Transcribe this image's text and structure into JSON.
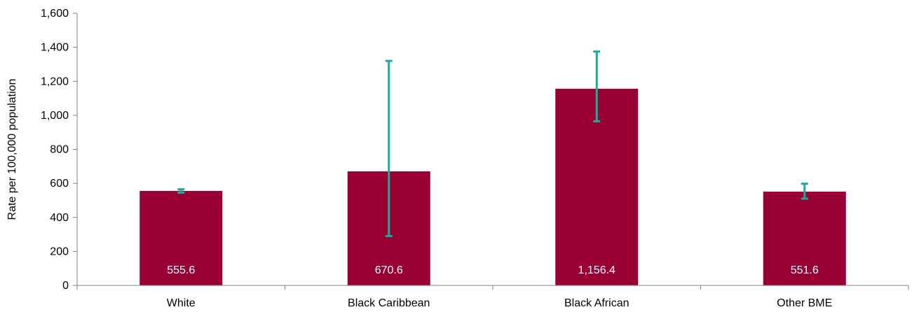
{
  "chart_data": {
    "type": "bar",
    "title": "",
    "xlabel": "",
    "ylabel": "Rate per 100,000 population",
    "ylim": [
      0,
      1600
    ],
    "yticks": [
      0,
      200,
      400,
      600,
      800,
      1000,
      1200,
      1400,
      1600
    ],
    "ytick_labels": [
      "0",
      "200",
      "400",
      "600",
      "800",
      "1,000",
      "1,200",
      "1,400",
      "1,600"
    ],
    "categories": [
      "White",
      "Black Caribbean",
      "Black African",
      "Other BME"
    ],
    "values": [
      555.6,
      670.6,
      1156.4,
      551.6
    ],
    "value_labels": [
      "555.6",
      "670.6",
      "1,156.4",
      "551.6"
    ],
    "error_low": [
      545,
      290,
      965,
      510
    ],
    "error_high": [
      565,
      1320,
      1375,
      598
    ],
    "grid": false,
    "legend": "none",
    "colors": {
      "bar": "#990033",
      "error_bar": "#1aab9b",
      "axis": "#808080"
    }
  }
}
